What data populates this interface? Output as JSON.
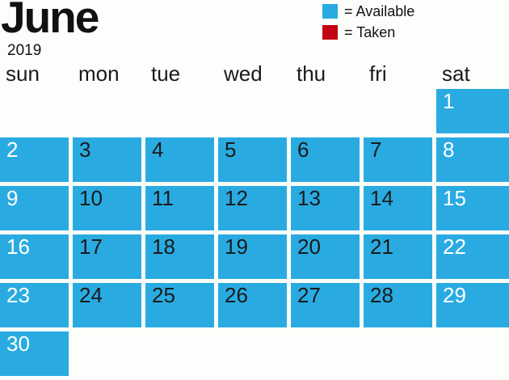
{
  "page": {
    "background": "#FBFEFB"
  },
  "title": {
    "month": "June",
    "year": "2019"
  },
  "legend": {
    "items": [
      {
        "name": "available",
        "label": "= Available",
        "color": "#29ABE2"
      },
      {
        "name": "taken",
        "label": "= Taken",
        "color": "#C1040F"
      }
    ]
  },
  "weekday_header": {
    "labels": [
      "sun",
      "mon",
      "tue",
      "wed",
      "thu",
      "fri",
      "sat"
    ]
  },
  "colors": {
    "available": "#29ABE2",
    "taken": "#C1040F",
    "weekend_number": "#FFFFFF",
    "weekday_number": "#1A1A1A",
    "text": "#111111"
  },
  "calendar": {
    "month": "June",
    "year": "2019",
    "days": [
      {
        "day": 1,
        "weekday": "sat",
        "col": 6,
        "row": 0,
        "status": "available"
      },
      {
        "day": 2,
        "weekday": "sun",
        "col": 0,
        "row": 1,
        "status": "available"
      },
      {
        "day": 3,
        "weekday": "mon",
        "col": 1,
        "row": 1,
        "status": "available"
      },
      {
        "day": 4,
        "weekday": "tue",
        "col": 2,
        "row": 1,
        "status": "available"
      },
      {
        "day": 5,
        "weekday": "wed",
        "col": 3,
        "row": 1,
        "status": "available"
      },
      {
        "day": 6,
        "weekday": "thu",
        "col": 4,
        "row": 1,
        "status": "available"
      },
      {
        "day": 7,
        "weekday": "fri",
        "col": 5,
        "row": 1,
        "status": "available"
      },
      {
        "day": 8,
        "weekday": "sat",
        "col": 6,
        "row": 1,
        "status": "available"
      },
      {
        "day": 9,
        "weekday": "sun",
        "col": 0,
        "row": 2,
        "status": "available"
      },
      {
        "day": 10,
        "weekday": "mon",
        "col": 1,
        "row": 2,
        "status": "available"
      },
      {
        "day": 11,
        "weekday": "tue",
        "col": 2,
        "row": 2,
        "status": "available"
      },
      {
        "day": 12,
        "weekday": "wed",
        "col": 3,
        "row": 2,
        "status": "available"
      },
      {
        "day": 13,
        "weekday": "thu",
        "col": 4,
        "row": 2,
        "status": "available"
      },
      {
        "day": 14,
        "weekday": "fri",
        "col": 5,
        "row": 2,
        "status": "available"
      },
      {
        "day": 15,
        "weekday": "sat",
        "col": 6,
        "row": 2,
        "status": "available"
      },
      {
        "day": 16,
        "weekday": "sun",
        "col": 0,
        "row": 3,
        "status": "available"
      },
      {
        "day": 17,
        "weekday": "mon",
        "col": 1,
        "row": 3,
        "status": "available"
      },
      {
        "day": 18,
        "weekday": "tue",
        "col": 2,
        "row": 3,
        "status": "available"
      },
      {
        "day": 19,
        "weekday": "wed",
        "col": 3,
        "row": 3,
        "status": "available"
      },
      {
        "day": 20,
        "weekday": "thu",
        "col": 4,
        "row": 3,
        "status": "available"
      },
      {
        "day": 21,
        "weekday": "fri",
        "col": 5,
        "row": 3,
        "status": "available"
      },
      {
        "day": 22,
        "weekday": "sat",
        "col": 6,
        "row": 3,
        "status": "available"
      },
      {
        "day": 23,
        "weekday": "sun",
        "col": 0,
        "row": 4,
        "status": "available"
      },
      {
        "day": 24,
        "weekday": "mon",
        "col": 1,
        "row": 4,
        "status": "available"
      },
      {
        "day": 25,
        "weekday": "tue",
        "col": 2,
        "row": 4,
        "status": "available"
      },
      {
        "day": 26,
        "weekday": "wed",
        "col": 3,
        "row": 4,
        "status": "available"
      },
      {
        "day": 27,
        "weekday": "thu",
        "col": 4,
        "row": 4,
        "status": "available"
      },
      {
        "day": 28,
        "weekday": "fri",
        "col": 5,
        "row": 4,
        "status": "available"
      },
      {
        "day": 29,
        "weekday": "sat",
        "col": 6,
        "row": 4,
        "status": "available"
      },
      {
        "day": 30,
        "weekday": "sun",
        "col": 0,
        "row": 5,
        "status": "available"
      }
    ]
  }
}
